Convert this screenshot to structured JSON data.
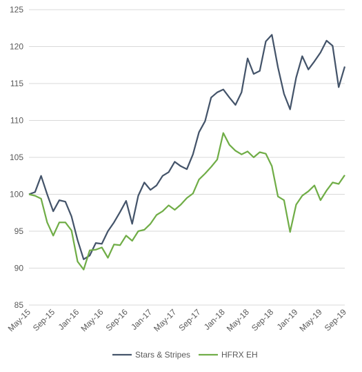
{
  "chart_data": {
    "type": "line",
    "categories": [
      "May-15",
      null,
      null,
      null,
      "Sep-15",
      null,
      null,
      null,
      "Jan-16",
      null,
      null,
      null,
      "May-16",
      null,
      null,
      null,
      "Sep-16",
      null,
      null,
      null,
      "Jan-17",
      null,
      null,
      null,
      "May-17",
      null,
      null,
      null,
      "Sep-17",
      null,
      null,
      null,
      "Jan-18",
      null,
      null,
      null,
      "May-18",
      null,
      null,
      null,
      "Sep-18",
      null,
      null,
      null,
      "Jan-19",
      null,
      null,
      null,
      "May-19",
      null,
      null,
      null,
      "Sep-19"
    ],
    "series": [
      {
        "name": "Stars & Stripes",
        "color": "#44546a",
        "values": [
          100,
          100.3,
          102.5,
          100,
          97.7,
          99.2,
          99,
          97,
          93.8,
          91.2,
          91.7,
          93.4,
          93.3,
          95,
          96.2,
          97.6,
          99.1,
          96,
          99.8,
          101.6,
          100.6,
          101.2,
          102.5,
          103,
          104.4,
          103.8,
          103.4,
          105.4,
          108.4,
          109.9,
          113.1,
          113.8,
          114.2,
          113.1,
          112.1,
          113.8,
          118.4,
          116.3,
          116.7,
          120.7,
          121.6,
          117.2,
          113.6,
          111.5,
          115.8,
          118.7,
          116.9,
          118,
          119.2,
          120.8,
          120.1,
          114.5,
          117.3
        ]
      },
      {
        "name": "HFRX EH",
        "color": "#70ad47",
        "values": [
          100,
          99.8,
          99.4,
          96.2,
          94.4,
          96.2,
          96.2,
          95.1,
          90.9,
          89.8,
          92.4,
          92.5,
          92.8,
          91.4,
          93.2,
          93.1,
          94.4,
          93.7,
          95,
          95.2,
          96,
          97.2,
          97.7,
          98.5,
          97.9,
          98.6,
          99.5,
          100.1,
          102,
          102.8,
          103.7,
          104.7,
          108.3,
          106.7,
          105.9,
          105.4,
          105.8,
          105,
          105.7,
          105.5,
          103.8,
          99.7,
          99.2,
          94.9,
          98.6,
          99.8,
          100.4,
          101.2,
          99.2,
          100.5,
          101.6,
          101.4,
          102.6
        ]
      }
    ],
    "ylim": [
      85,
      125
    ],
    "yticks": [
      85,
      90,
      95,
      100,
      105,
      110,
      115,
      120,
      125
    ],
    "grid": true,
    "legend": "bottom"
  }
}
